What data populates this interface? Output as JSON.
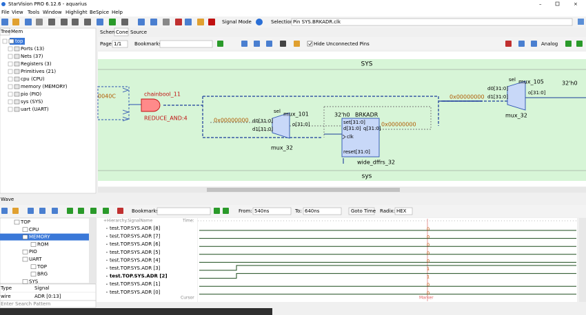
{
  "window": {
    "title": "StarVision PRO 6.12.6 - aquarius"
  },
  "menu": [
    "File",
    "View",
    "Tools",
    "Window",
    "Highlight",
    "BeSpice",
    "Help"
  ],
  "toolbar": {
    "mode": "Signal Mode",
    "selection_label": "Selection:",
    "selection": "Pin SYS.BRKADR.clk"
  },
  "left_panel": {
    "tabs": [
      "Tree",
      "Mem"
    ],
    "items": [
      "top",
      "Ports (13)",
      "Nets (37)",
      "Registers (3)",
      "Primitives (21)",
      "cpu (CPU)",
      "memory (MEMORY)",
      "pio (PIO)",
      "sys (SYS)",
      "uart (UART)"
    ]
  },
  "schematic": {
    "tabs": [
      "Schem",
      "Cone",
      "Source"
    ],
    "page_label": "Page:",
    "page": "1/1",
    "bookmarks_label": "Bookmarks:",
    "hide_pins": "Hide Unconnected Pins",
    "analog": "Analog",
    "top_label": "SYS",
    "bottom_label": "sys",
    "left_value": "0040C",
    "gate": {
      "name": "chainbool_11",
      "type": "REDUCE_AND:4"
    },
    "mux_left": {
      "value": "0x00000000",
      "sel": "sel",
      "name": "mux_101",
      "d0": "d0[31:0]",
      "d1": "d1[31:0]",
      "o": "o[31:0]",
      "type": "mux_32"
    },
    "register": {
      "const": "32'h0",
      "name": "BRKADR",
      "set": "set[31:0]",
      "d": "d[31:0]",
      "q": "q[31:0]",
      "clk": "clk",
      "reset": "reset[31:0]",
      "type": "wide_dffrs_32",
      "out": "0x00000000"
    },
    "mux_right": {
      "value": "0x00000000",
      "sel": "sel",
      "name": "mux_105",
      "d0": "d0[31:0]",
      "d1": "d1[31:0]",
      "o": "o[31:0]",
      "type": "mux_32",
      "const": "32'h0"
    }
  },
  "wave": {
    "tab": "Wave",
    "bookmarks_label": "Bookmarks:",
    "from_label": "From:",
    "from": "540ns",
    "to_label": "To:",
    "to": "640ns",
    "goto": "Goto Time",
    "radix_label": "Radix:",
    "radix": "HEX",
    "tree": [
      "TOP",
      "CPU",
      "MEMORY",
      "ROM",
      "PIO",
      "UART",
      "TOP",
      "BRG",
      "SYS"
    ],
    "info": {
      "headers": [
        "Type",
        "Signal"
      ],
      "row": [
        "wire",
        "ADR [0:13]"
      ]
    },
    "search": "Enter Search Pattern",
    "signal_header": "+Hierarchy.SignalName",
    "time_label": "Time:",
    "cursor": "Cursor",
    "marker": "Marker",
    "signals": [
      {
        "name": "test.TOP.SYS.ADR [8]",
        "value": 0
      },
      {
        "name": "test.TOP.SYS.ADR [7]",
        "value": 0
      },
      {
        "name": "test.TOP.SYS.ADR [6]",
        "value": 0
      },
      {
        "name": "test.TOP.SYS.ADR [5]",
        "value": 0
      },
      {
        "name": "test.TOP.SYS.ADR [4]",
        "value": 0
      },
      {
        "name": "test.TOP.SYS.ADR [3]",
        "value": 1
      },
      {
        "name": "test.TOP.SYS.ADR [2]",
        "value": 1
      },
      {
        "name": "test.TOP.SYS.ADR [1]",
        "value": 0
      },
      {
        "name": "test.TOP.SYS.ADR [0]",
        "value": 0
      }
    ]
  }
}
